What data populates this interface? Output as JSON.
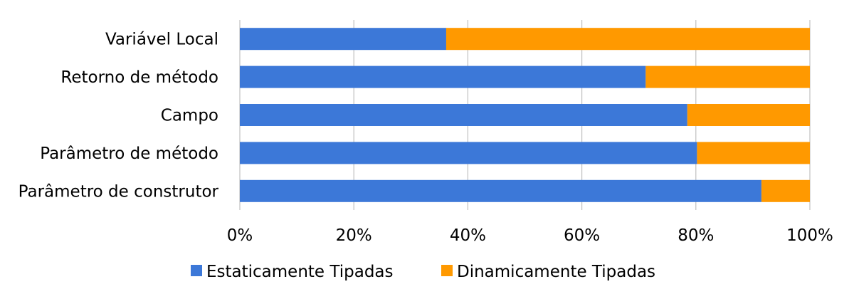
{
  "chart_data": {
    "type": "bar",
    "orientation": "horizontal",
    "stacked": "percent",
    "categories": [
      "Parâmetro de construtor",
      "Parâmetro de método",
      "Campo",
      "Retorno de método",
      "Variável Local"
    ],
    "series": [
      {
        "name": "Estaticamente Tipadas",
        "values": [
          91.5,
          80.2,
          78.5,
          71.2,
          36.2
        ],
        "color": "#3c78d8"
      },
      {
        "name": "Dinamicamente Tipadas",
        "values": [
          8.5,
          19.8,
          21.5,
          28.8,
          63.8
        ],
        "color": "#ff9900"
      }
    ],
    "xlim": [
      0,
      100
    ],
    "x_ticks": [
      "0%",
      "20%",
      "40%",
      "60%",
      "80%",
      "100%"
    ],
    "grid": true,
    "legend_position": "bottom"
  }
}
